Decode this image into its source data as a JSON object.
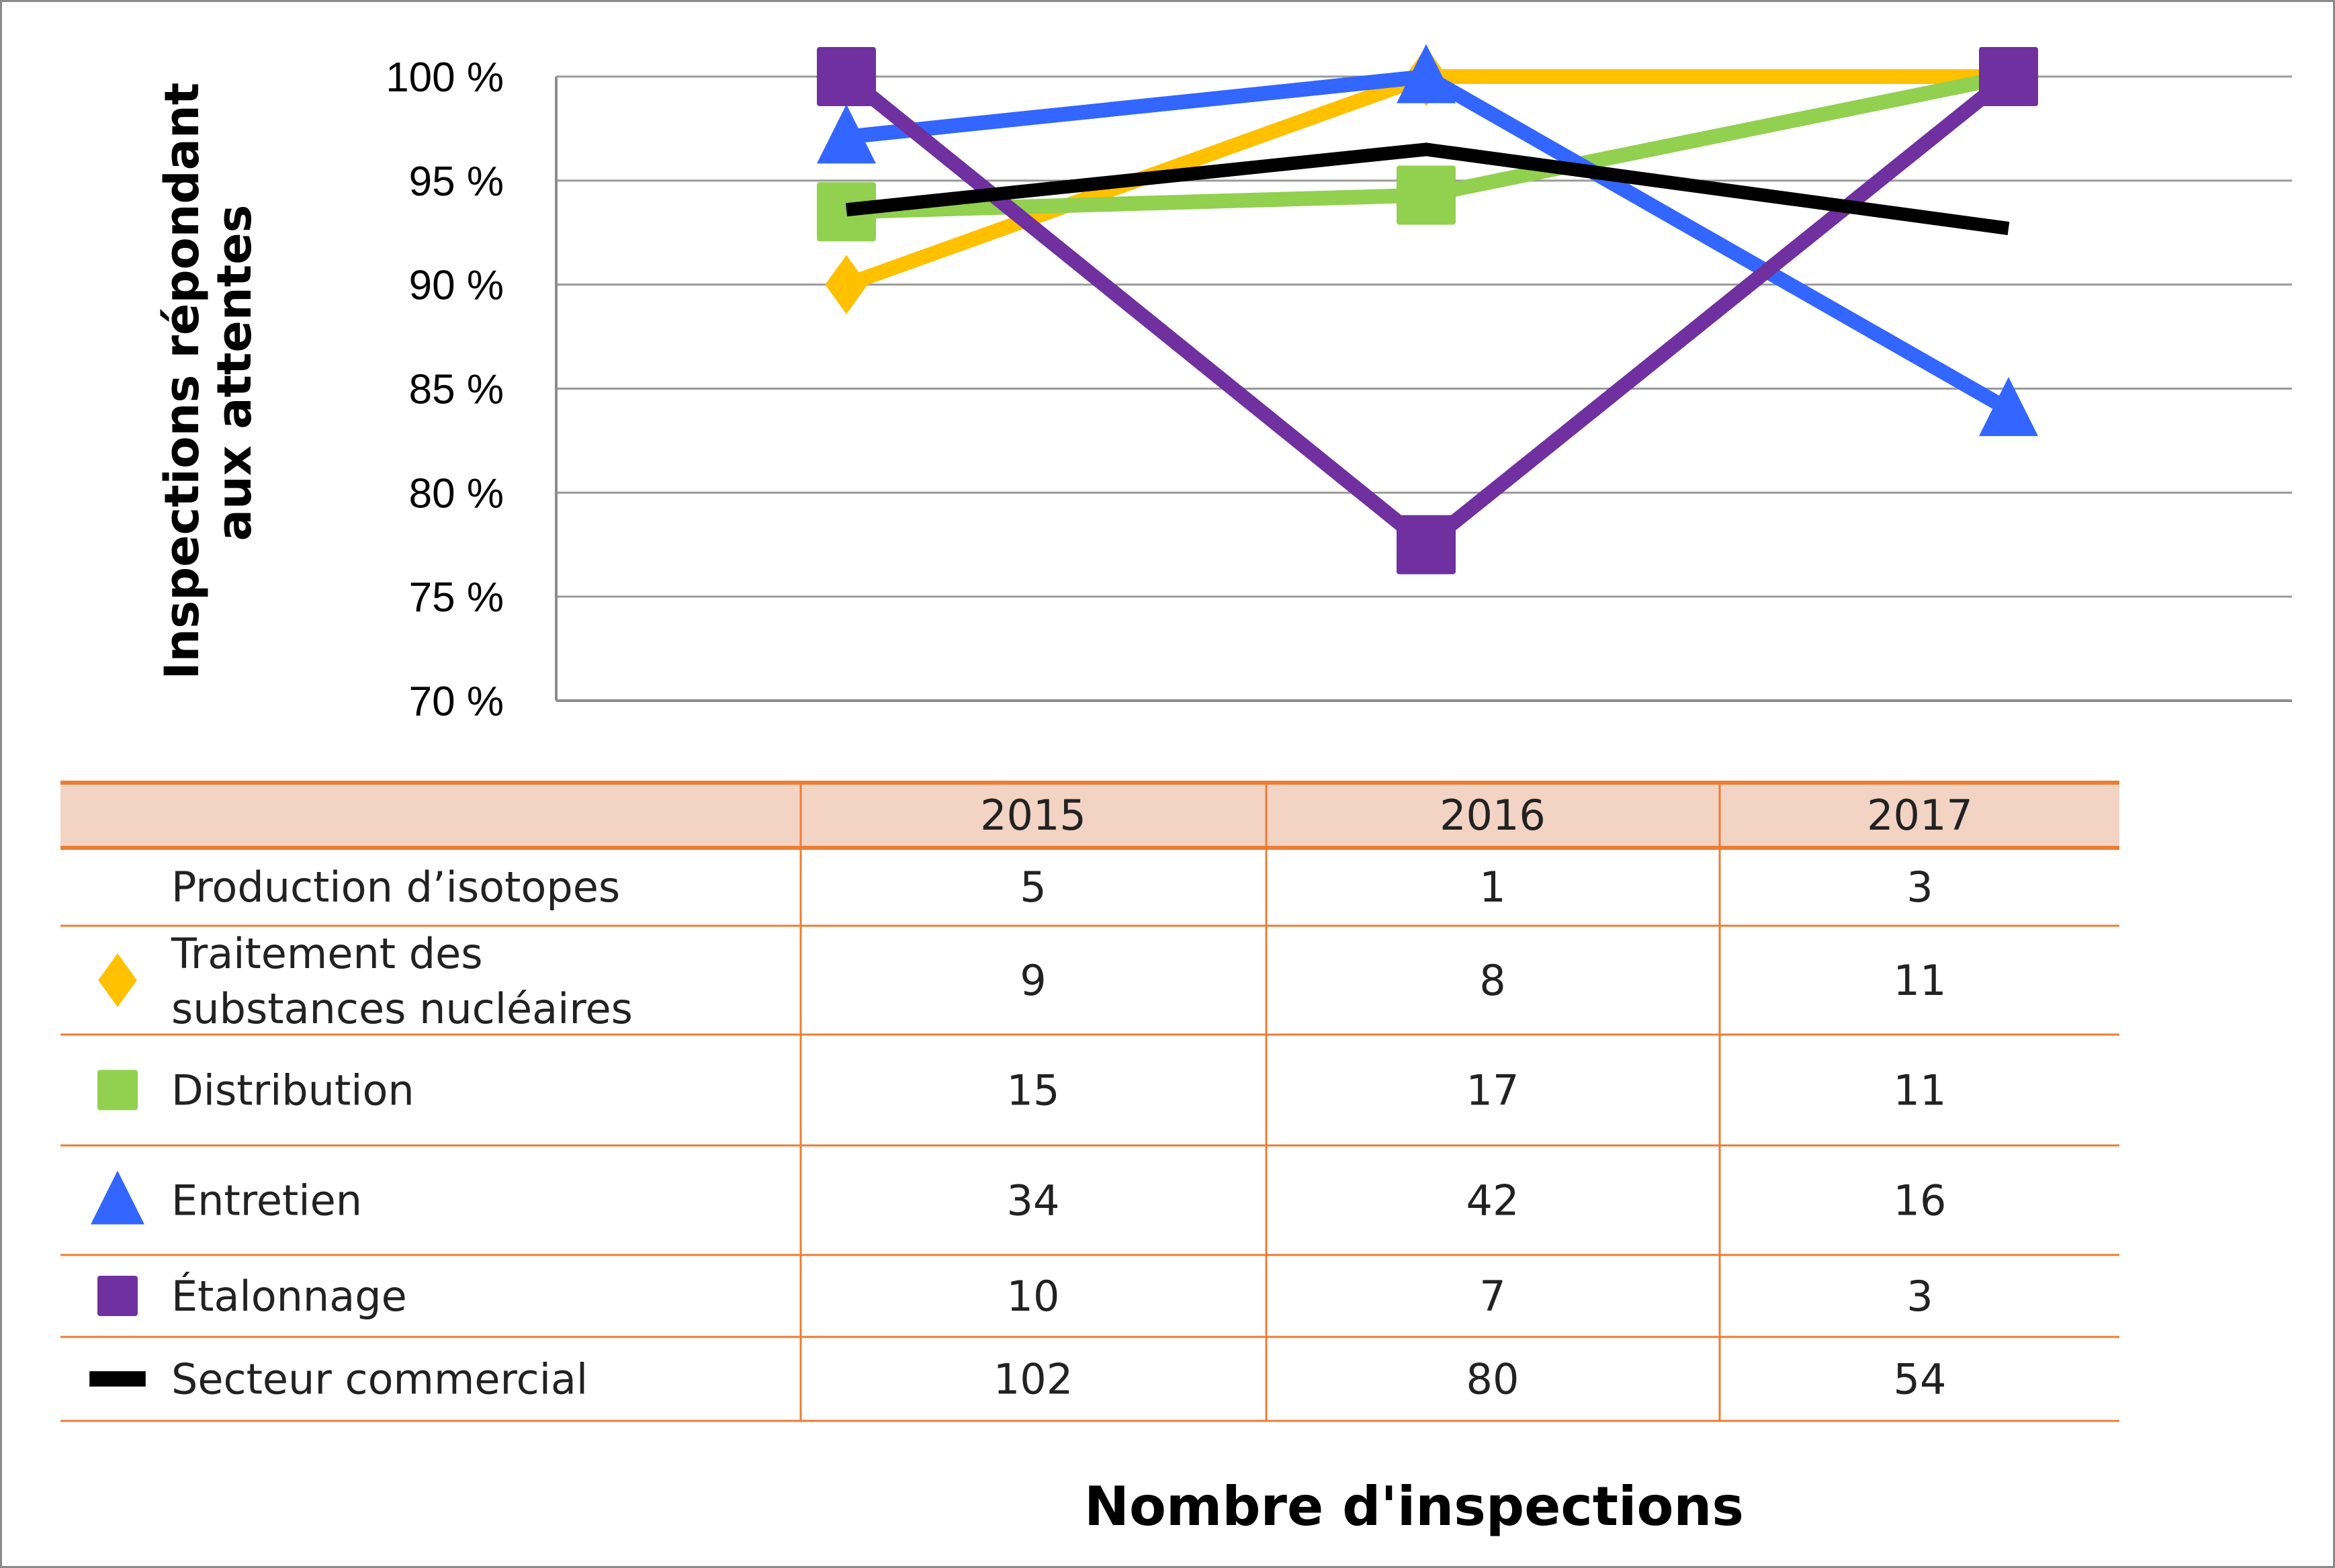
{
  "chart_data": {
    "type": "line",
    "ylabel_lines": [
      "Inspections répondant",
      "aux attentes"
    ],
    "xlabel": "Nombre d'inspections",
    "categories": [
      "2015",
      "2016",
      "2017"
    ],
    "ylim": [
      70,
      100
    ],
    "yticks": [
      "70 %",
      "75 %",
      "80 %",
      "85 %",
      "90 %",
      "95 %",
      "100 %"
    ],
    "ytick_values": [
      70,
      75,
      80,
      85,
      90,
      95,
      100
    ],
    "grid": true,
    "series": [
      {
        "name": "Traitement des substances nucléaires",
        "color": "#FFC000",
        "marker": "diamond",
        "values": [
          90,
          100,
          100
        ]
      },
      {
        "name": "Distribution",
        "color": "#92D050",
        "marker": "square",
        "values": [
          93.5,
          94.3,
          100
        ]
      },
      {
        "name": "Entretien",
        "color": "#3366FF",
        "marker": "triangle",
        "values": [
          97.1,
          100,
          84
        ]
      },
      {
        "name": "Étalonnage",
        "color": "#7030A0",
        "marker": "square",
        "values": [
          100,
          77.5,
          100
        ]
      },
      {
        "name": "Secteur commercial",
        "color": "#000000",
        "marker": "none",
        "values": [
          93.6,
          96.5,
          92.7
        ]
      }
    ]
  },
  "table": {
    "header": [
      "",
      "2015",
      "2016",
      "2017"
    ],
    "header_fill": "#F2D3C4",
    "rule_color": "#ED7D31",
    "rows": [
      {
        "label_lines": [
          "Production d’isotopes"
        ],
        "marker": "none",
        "color": "",
        "values": [
          "5",
          "1",
          "3"
        ]
      },
      {
        "label_lines": [
          "Traitement des",
          "substances nucléaires"
        ],
        "marker": "diamond",
        "color": "#FFC000",
        "values": [
          "9",
          "8",
          "11"
        ]
      },
      {
        "label_lines": [
          "Distribution"
        ],
        "marker": "square",
        "color": "#92D050",
        "values": [
          "15",
          "17",
          "11"
        ]
      },
      {
        "label_lines": [
          "Entretien"
        ],
        "marker": "triangle",
        "color": "#3366FF",
        "values": [
          "34",
          "42",
          "16"
        ]
      },
      {
        "label_lines": [
          "Étalonnage"
        ],
        "marker": "square",
        "color": "#7030A0",
        "values": [
          "10",
          "7",
          "3"
        ]
      },
      {
        "label_lines": [
          "Secteur commercial"
        ],
        "marker": "dash",
        "color": "#000000",
        "values": [
          "102",
          "80",
          "54"
        ]
      }
    ]
  }
}
